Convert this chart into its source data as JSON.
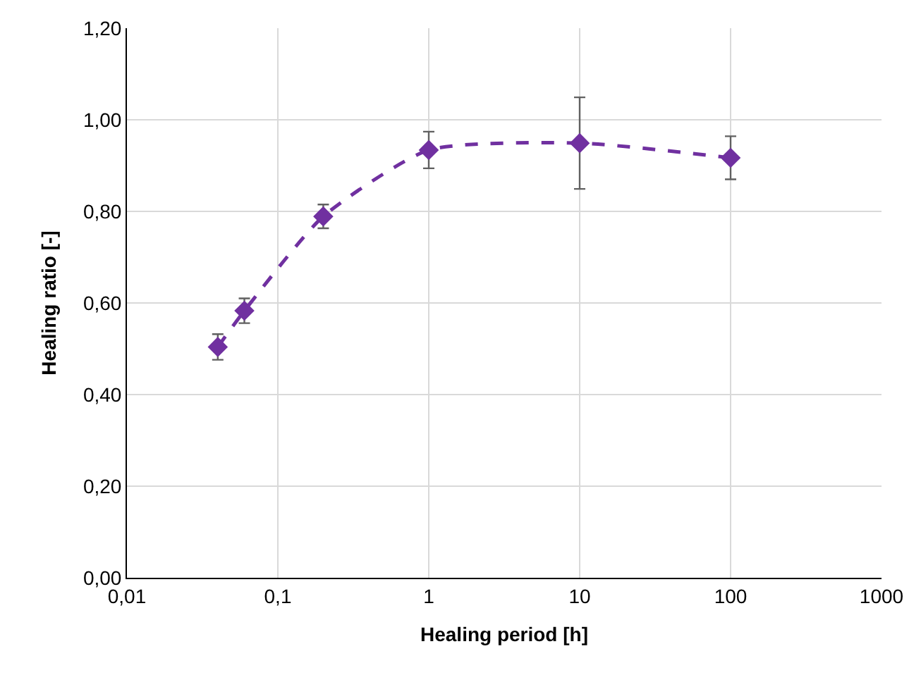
{
  "chart_data": {
    "type": "line",
    "xlabel": "Healing period [h]",
    "ylabel": "Healing ratio [-]",
    "x": [
      0.04,
      0.06,
      0.2,
      1,
      10,
      100
    ],
    "series": [
      {
        "color": "#7030a0",
        "values": [
          0.504,
          0.583,
          0.789,
          0.934,
          0.949,
          0.917
        ],
        "errors": [
          0.028,
          0.027,
          0.026,
          0.04,
          0.1,
          0.047
        ]
      }
    ],
    "log": "x",
    "xlim": [
      0.01,
      1000
    ],
    "xticks": [
      {
        "value": 0.01,
        "label": "0,01"
      },
      {
        "value": 0.1,
        "label": "0,1"
      },
      {
        "value": 1,
        "label": "1"
      },
      {
        "value": 10,
        "label": "10"
      },
      {
        "value": 100,
        "label": "100"
      },
      {
        "value": 1000,
        "label": "1000"
      }
    ],
    "ylim": [
      0,
      1.2
    ],
    "yticks": [
      {
        "value": 0,
        "label": "0,00"
      },
      {
        "value": 0.2,
        "label": "0,20"
      },
      {
        "value": 0.4,
        "label": "0,40"
      },
      {
        "value": 0.6,
        "label": "0,60"
      },
      {
        "value": 0.8,
        "label": "0,80"
      },
      {
        "value": 1.0,
        "label": "1,00"
      },
      {
        "value": 1.2,
        "label": "1,20"
      }
    ],
    "grid": true,
    "legend": false,
    "marker": "diamond",
    "line_style": "dashed"
  }
}
